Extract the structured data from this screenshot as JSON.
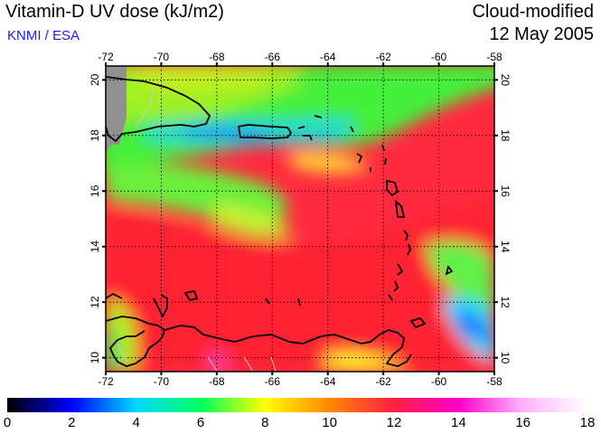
{
  "header": {
    "title": "Vitamin-D UV dose (kJ/m2)",
    "subtitle": "KNMI / ESA",
    "mode": "Cloud-modified",
    "date": "12 May 2005"
  },
  "map": {
    "lon_range": [
      -72,
      -58
    ],
    "lat_range": [
      9.5,
      20.5
    ],
    "lon_ticks": [
      "-72",
      "-70",
      "-68",
      "-66",
      "-64",
      "-62",
      "-60",
      "-58"
    ],
    "lat_ticks": [
      "10",
      "12",
      "14",
      "16",
      "18",
      "20"
    ],
    "gridlines": true
  },
  "colorbar": {
    "min": 0,
    "max": 18,
    "labels": [
      "0",
      "2",
      "4",
      "6",
      "8",
      "10",
      "12",
      "14",
      "16",
      "18"
    ],
    "stops": [
      "#000000",
      "#0000ff",
      "#00d8ff",
      "#00ff60",
      "#ffff00",
      "#ff8800",
      "#ff2040",
      "#ff00c8",
      "#ffb4ff",
      "#ffffff"
    ]
  }
}
